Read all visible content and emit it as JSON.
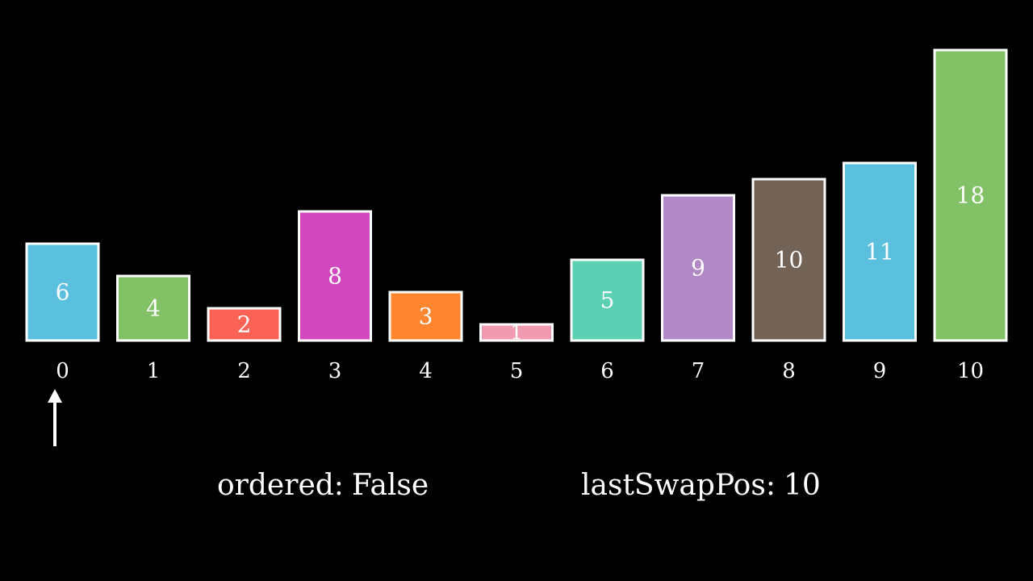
{
  "chart_data": {
    "type": "bar",
    "categories": [
      "0",
      "1",
      "2",
      "3",
      "4",
      "5",
      "6",
      "7",
      "8",
      "9",
      "10"
    ],
    "values": [
      6,
      4,
      2,
      8,
      3,
      1,
      5,
      9,
      10,
      11,
      18
    ],
    "value_labels": [
      "6",
      "4",
      "2",
      "8",
      "3",
      "1",
      "5",
      "9",
      "10",
      "11",
      "18"
    ],
    "colors": [
      "#5bc0de",
      "#83c167",
      "#fc6255",
      "#d147bd",
      "#ff862f",
      "#f09bb1",
      "#5cd0b3",
      "#b189c6",
      "#736357",
      "#5bc0de",
      "#83c167"
    ],
    "bar_border_color": "#ffffff",
    "title": "",
    "xlabel": "",
    "ylabel": "",
    "ylim": [
      0,
      18
    ],
    "grid": false,
    "pointer_index": 0
  },
  "status": {
    "ordered_label": "ordered:",
    "ordered_value": "False",
    "lastswap_label": "lastSwapPos:",
    "lastswap_value": "10"
  }
}
